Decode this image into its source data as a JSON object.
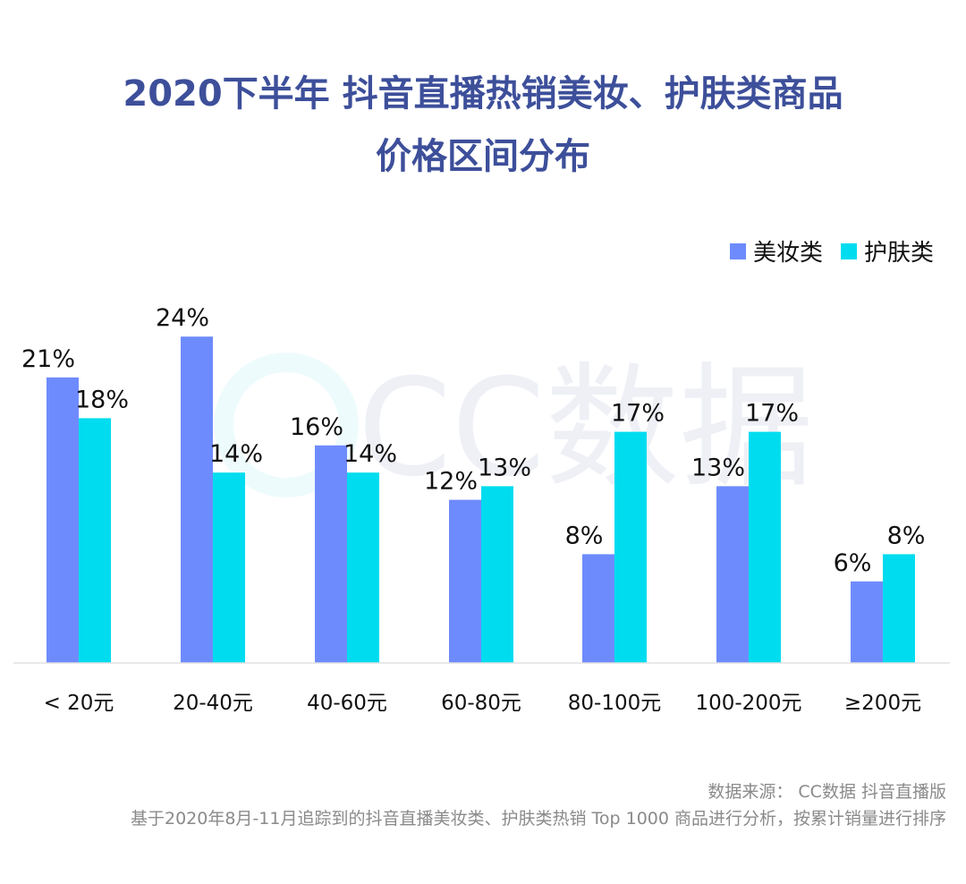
{
  "title_line1": "2020下半年 抖音直播热销美妆、护肤类商品",
  "title_line2": "价格区间分布",
  "watermark": "CC数据",
  "footer": {
    "source": "数据来源： CC数据 抖音直播版",
    "note": "基于2020年8月-11月追踪到的抖音直播美妆类、护肤类热销 Top 1000 商品进行分析，按累计销量进行排序"
  },
  "chart_data": {
    "type": "bar",
    "title": "2020下半年 抖音直播热销美妆、护肤类商品价格区间分布",
    "xlabel": "",
    "ylabel": "",
    "categories": [
      "< 20元",
      "20-40元",
      "40-60元",
      "60-80元",
      "80-100元",
      "100-200元",
      "≥200元"
    ],
    "series": [
      {
        "name": "美妆类",
        "color": "#6e8bfd",
        "values": [
          21,
          24,
          16,
          12,
          8,
          13,
          6
        ]
      },
      {
        "name": "护肤类",
        "color": "#00dcef",
        "values": [
          18,
          14,
          14,
          13,
          17,
          17,
          8
        ]
      }
    ],
    "value_suffix": "%",
    "ylim": [
      0,
      24
    ],
    "grid": false,
    "legend_position": "top-right"
  }
}
